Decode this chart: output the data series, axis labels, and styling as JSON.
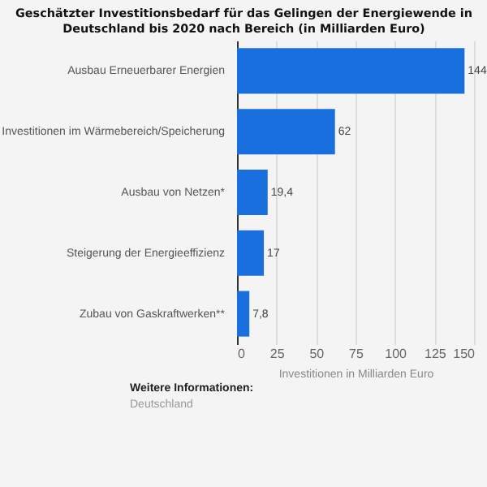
{
  "chart_data": {
    "type": "bar",
    "orientation": "horizontal",
    "title": [
      "Geschätzter Investitionsbedarf für das Gelingen der Energiewende in",
      "Deutschland bis 2020 nach Bereich (in Milliarden Euro)"
    ],
    "categories": [
      "Ausbau Erneuerbarer Energien",
      "Investitionen im Wärmebereich/Speicherung",
      "Ausbau von Netzen*",
      "Steigerung der Energieeffizienz",
      "Zubau von Gaskraftwerken**"
    ],
    "values": [
      144,
      62,
      19.4,
      17,
      7.8
    ],
    "value_labels": [
      "144",
      "62",
      "19,4",
      "17",
      "7,8"
    ],
    "color": "#1a6fdf",
    "xlabel": "Investitionen in Milliarden Euro",
    "xlim": [
      0,
      150
    ],
    "xticks": [
      0,
      25,
      50,
      75,
      100,
      125,
      150
    ],
    "grid": "x",
    "annotations": [
      "Weitere Informationen:",
      "Deutschland"
    ]
  }
}
